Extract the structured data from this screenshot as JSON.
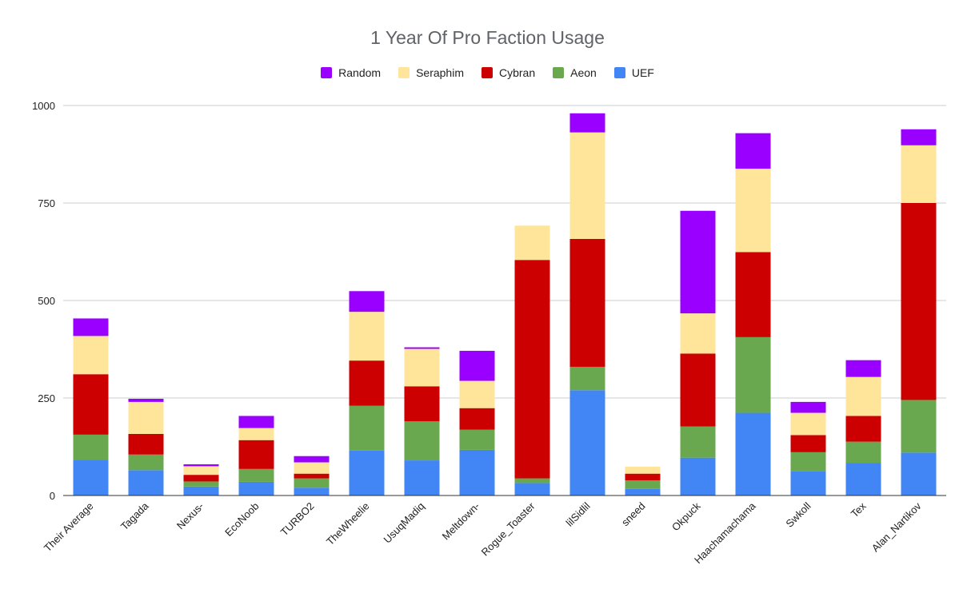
{
  "chart_data": {
    "type": "bar",
    "stacked": true,
    "title": "1 Year Of Pro Faction Usage",
    "xlabel": "",
    "ylabel": "",
    "ylim": [
      0,
      1000
    ],
    "yticks": [
      0,
      250,
      500,
      750,
      1000
    ],
    "grid": true,
    "legend_position": "top",
    "categories": [
      "Their Average",
      "Tagada",
      "Nexus-",
      "EcoNoob",
      "TURBO2",
      "TheWheelie",
      "UsuqMadiq",
      "Meltdown-",
      "Rogue_Toaster",
      "lilSidlil",
      "sneed",
      "Okpuck",
      "Haachamachama",
      "Swkoll",
      "Tex",
      "Alan_Nartikov"
    ],
    "series": [
      {
        "name": "UEF",
        "color": "#4285f4",
        "values": [
          92,
          65,
          23,
          35,
          20,
          115,
          90,
          117,
          32,
          270,
          17,
          97,
          212,
          63,
          83,
          110
        ]
      },
      {
        "name": "Aeon",
        "color": "#6aa84f",
        "values": [
          64,
          40,
          13,
          33,
          24,
          115,
          100,
          52,
          12,
          60,
          22,
          80,
          194,
          48,
          55,
          135
        ]
      },
      {
        "name": "Cybran",
        "color": "#cc0000",
        "values": [
          155,
          53,
          17,
          74,
          12,
          116,
          90,
          55,
          560,
          328,
          17,
          187,
          218,
          44,
          66,
          505
        ]
      },
      {
        "name": "Seraphim",
        "color": "#ffe599",
        "values": [
          98,
          82,
          22,
          31,
          29,
          125,
          96,
          70,
          88,
          273,
          18,
          103,
          214,
          57,
          100,
          148
        ]
      },
      {
        "name": "Random",
        "color": "#9900ff",
        "values": [
          45,
          8,
          5,
          31,
          16,
          53,
          4,
          77,
          0,
          49,
          0,
          263,
          91,
          28,
          43,
          41
        ]
      }
    ]
  }
}
